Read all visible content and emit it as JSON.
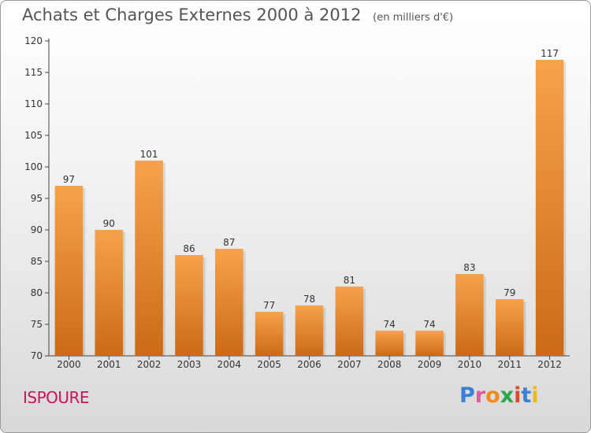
{
  "chart_data": {
    "type": "bar",
    "title": "Achats et Charges Externes 2000 à 2012",
    "subtitle": "(en milliers d'€)",
    "categories": [
      "2000",
      "2001",
      "2002",
      "2003",
      "2004",
      "2005",
      "2006",
      "2007",
      "2008",
      "2009",
      "2010",
      "2011",
      "2012"
    ],
    "values": [
      97,
      90,
      101,
      86,
      87,
      77,
      78,
      81,
      74,
      74,
      83,
      79,
      117
    ],
    "ylim": [
      70,
      120
    ],
    "yticks": [
      70,
      75,
      80,
      85,
      90,
      95,
      100,
      105,
      110,
      115,
      120
    ],
    "grid": false,
    "bar_color_top": "#f6a24c",
    "bar_color_bottom": "#cc6a16"
  },
  "footer": {
    "commune": "ISPOURE",
    "logo_letters": [
      "P",
      "r",
      "o",
      "x",
      "i",
      "t",
      "i"
    ],
    "logo_colors": [
      "#3b7fd6",
      "#e05a9a",
      "#f08a1a",
      "#2aa84a",
      "#d94b2a",
      "#3b7fd6",
      "#f0b81a"
    ]
  }
}
